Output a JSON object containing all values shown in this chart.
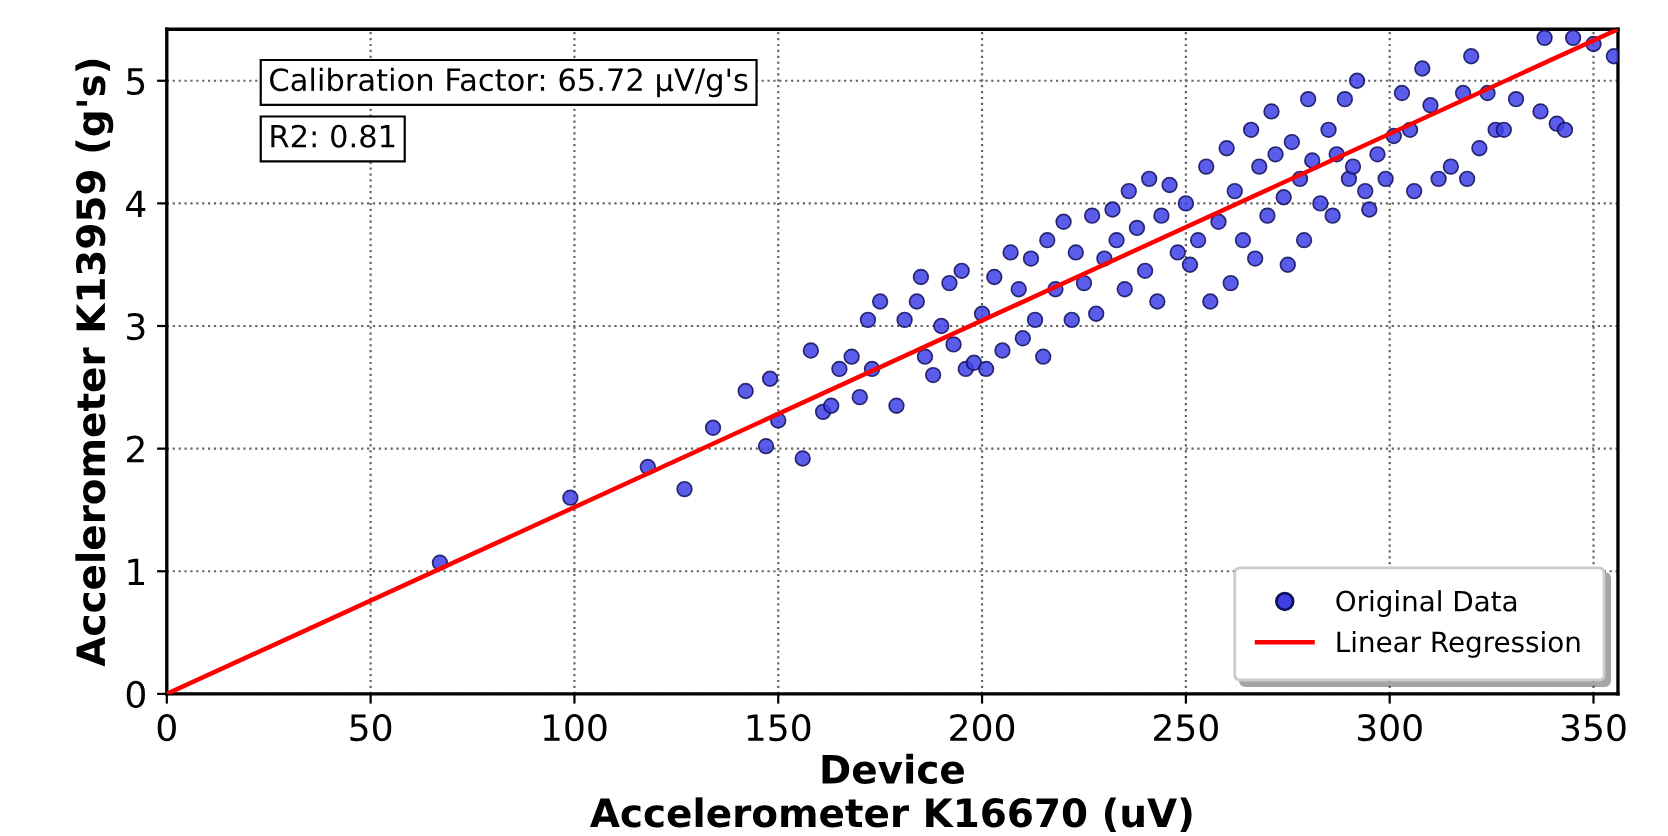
{
  "chart_data": {
    "type": "scatter",
    "xlabel": "Device\nAccelerometer K16670 (uV)",
    "ylabel": "Accelerometer K13959 (g's)",
    "annotations": [
      "Calibration Factor: 65.72 µV/g's",
      "R2: 0.81"
    ],
    "xlim": [
      0,
      356
    ],
    "ylim": [
      0,
      5.42
    ],
    "xticks": [
      0,
      50,
      100,
      150,
      200,
      250,
      300,
      350
    ],
    "yticks": [
      0,
      1,
      2,
      3,
      4,
      5
    ],
    "grid": true,
    "legend": "lower right",
    "series": [
      {
        "name": "Original Data",
        "marker": "circle",
        "color": "#3f3fe6",
        "x": [
          67,
          99,
          118,
          127,
          134,
          142,
          147,
          148,
          150,
          156,
          158,
          161,
          163,
          165,
          168,
          170,
          172,
          173,
          175,
          179,
          181,
          184,
          185,
          186,
          188,
          190,
          192,
          193,
          195,
          196,
          198,
          200,
          201,
          203,
          205,
          207,
          209,
          210,
          212,
          213,
          215,
          216,
          218,
          220,
          222,
          223,
          225,
          227,
          228,
          230,
          232,
          233,
          235,
          236,
          238,
          240,
          241,
          243,
          244,
          246,
          248,
          250,
          251,
          253,
          255,
          256,
          258,
          260,
          261,
          262,
          264,
          266,
          267,
          268,
          270,
          271,
          272,
          274,
          275,
          276,
          278,
          279,
          280,
          281,
          283,
          285,
          286,
          287,
          289,
          290,
          291,
          292,
          294,
          295,
          297,
          299,
          301,
          303,
          305,
          306,
          308,
          310,
          312,
          315,
          318,
          319,
          320,
          322,
          324,
          326,
          328,
          331,
          337,
          338,
          341,
          343,
          345,
          350,
          355
        ],
        "values": [
          1.07,
          1.6,
          1.85,
          1.67,
          2.17,
          2.47,
          2.02,
          2.57,
          2.23,
          1.92,
          2.8,
          2.3,
          2.35,
          2.65,
          2.75,
          2.42,
          3.05,
          2.65,
          3.2,
          2.35,
          3.05,
          3.2,
          3.4,
          2.75,
          2.6,
          3.0,
          3.35,
          2.85,
          3.45,
          2.65,
          2.7,
          3.1,
          2.65,
          3.4,
          2.8,
          3.6,
          3.3,
          2.9,
          3.55,
          3.05,
          2.75,
          3.7,
          3.3,
          3.85,
          3.05,
          3.6,
          3.35,
          3.9,
          3.1,
          3.55,
          3.95,
          3.7,
          3.3,
          4.1,
          3.8,
          3.45,
          4.2,
          3.2,
          3.9,
          4.15,
          3.6,
          4.0,
          3.5,
          3.7,
          4.3,
          3.2,
          3.85,
          4.45,
          3.35,
          4.1,
          3.7,
          4.6,
          3.55,
          4.3,
          3.9,
          4.75,
          4.4,
          4.05,
          3.5,
          4.5,
          4.2,
          3.7,
          4.85,
          4.35,
          4.0,
          4.6,
          3.9,
          4.4,
          4.85,
          4.2,
          4.3,
          5.0,
          4.1,
          3.95,
          4.4,
          4.2,
          4.55,
          4.9,
          4.6,
          4.1,
          5.1,
          4.8,
          4.2,
          4.3,
          4.9,
          4.2,
          5.2,
          4.45,
          4.9,
          4.6,
          4.6,
          4.85,
          4.75,
          5.35,
          4.65,
          4.6,
          5.35,
          5.3,
          5.2
        ]
      },
      {
        "name": "Linear Regression",
        "type": "line",
        "color": "#ff0000",
        "x": [
          0,
          356
        ],
        "values": [
          0,
          5.42
        ]
      }
    ]
  }
}
